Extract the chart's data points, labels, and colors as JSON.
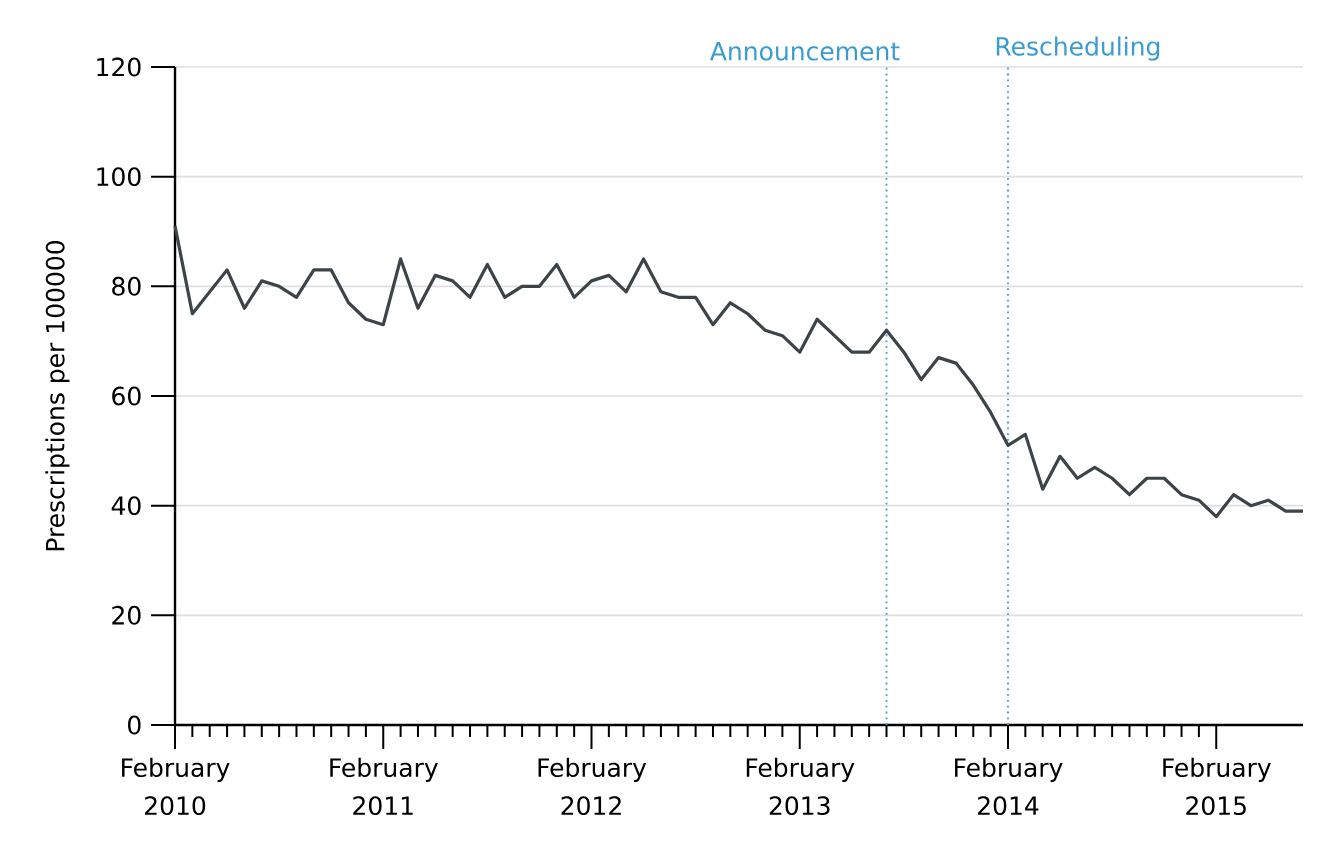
{
  "chart_data": {
    "type": "line",
    "ylabel": "Prescriptions per 100000",
    "x": [
      "2010-02",
      "2010-03",
      "2010-04",
      "2010-05",
      "2010-06",
      "2010-07",
      "2010-08",
      "2010-09",
      "2010-10",
      "2010-11",
      "2010-12",
      "2011-01",
      "2011-02",
      "2011-03",
      "2011-04",
      "2011-05",
      "2011-06",
      "2011-07",
      "2011-08",
      "2011-09",
      "2011-10",
      "2011-11",
      "2011-12",
      "2012-01",
      "2012-02",
      "2012-03",
      "2012-04",
      "2012-05",
      "2012-06",
      "2012-07",
      "2012-08",
      "2012-09",
      "2012-10",
      "2012-11",
      "2012-12",
      "2013-01",
      "2013-02",
      "2013-03",
      "2013-04",
      "2013-05",
      "2013-06",
      "2013-07",
      "2013-08",
      "2013-09",
      "2013-10",
      "2013-11",
      "2013-12",
      "2014-01",
      "2014-02",
      "2014-03",
      "2014-04",
      "2014-05",
      "2014-06",
      "2014-07",
      "2014-08",
      "2014-09",
      "2014-10",
      "2014-11",
      "2014-12",
      "2015-01",
      "2015-02",
      "2015-03",
      "2015-04",
      "2015-05",
      "2015-06",
      "2015-07"
    ],
    "series": [
      {
        "color": "#3c4448",
        "values": [
          91,
          75,
          79,
          83,
          76,
          81,
          80,
          78,
          83,
          83,
          77,
          74,
          73,
          85,
          76,
          82,
          81,
          78,
          84,
          78,
          80,
          80,
          84,
          78,
          81,
          82,
          79,
          85,
          79,
          78,
          78,
          73,
          77,
          75,
          72,
          71,
          68,
          74,
          71,
          68,
          68,
          72,
          68,
          63,
          67,
          66,
          62,
          57,
          51,
          53,
          43,
          49,
          45,
          47,
          45,
          42,
          45,
          45,
          42,
          41,
          38,
          42,
          40,
          41,
          39,
          39
        ]
      }
    ],
    "xlim": [
      "2010-02",
      "2015-07"
    ],
    "xticks": [
      {
        "value": "2010-02",
        "label": "February 2010"
      },
      {
        "value": "2011-02",
        "label": "February 2011"
      },
      {
        "value": "2012-02",
        "label": "February 2012"
      },
      {
        "value": "2013-02",
        "label": "February 2013"
      },
      {
        "value": "2014-02",
        "label": "February 2014"
      },
      {
        "value": "2015-02",
        "label": "February 2015"
      }
    ],
    "ylim": [
      0,
      120
    ],
    "yticks": [
      0,
      20,
      40,
      60,
      80,
      100,
      120
    ],
    "grid": "y",
    "ref_lines": [
      {
        "axis": "x",
        "value": "2013-07",
        "label": "Announcement",
        "color": "#3a9bd0",
        "line_style": "dotted"
      },
      {
        "axis": "x",
        "value": "2014-02",
        "label": "Rescheduling",
        "color": "#3a9bd0",
        "line_style": "dotted"
      }
    ]
  }
}
